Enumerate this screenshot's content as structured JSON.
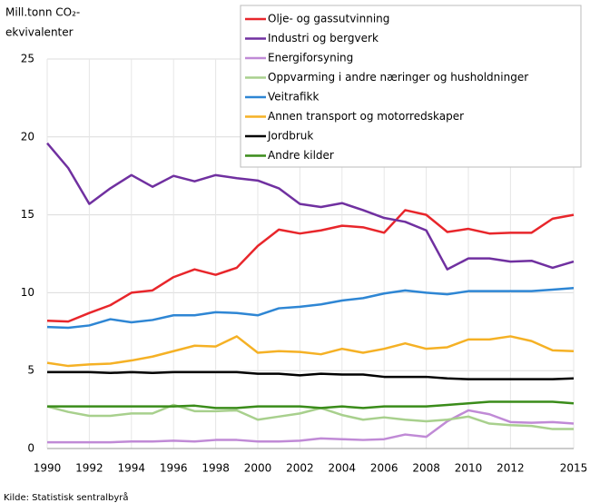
{
  "chart_data": {
    "type": "line",
    "ylabel": [
      "Mill.tonn CO₂-",
      "ekvivalenter"
    ],
    "source": "Kilde: Statistisk sentralbyrå",
    "x": [
      1990,
      1991,
      1992,
      1993,
      1994,
      1995,
      1996,
      1997,
      1998,
      1999,
      2000,
      2001,
      2002,
      2003,
      2004,
      2005,
      2006,
      2007,
      2008,
      2009,
      2010,
      2011,
      2012,
      2013,
      2014,
      2015
    ],
    "xlim": [
      1990,
      2015
    ],
    "xticks": [
      1990,
      1992,
      1994,
      1996,
      1998,
      2000,
      2002,
      2004,
      2006,
      2008,
      2010,
      2012,
      2015
    ],
    "ylim": [
      0,
      25
    ],
    "yticks": [
      0,
      5,
      10,
      15,
      20,
      25
    ],
    "grid": true,
    "legend": "top-right",
    "series": [
      {
        "name": "Olje- og gassutvinning",
        "color": "#e8262b",
        "values": [
          8.2,
          8.15,
          8.7,
          9.2,
          10.0,
          10.15,
          11.0,
          11.5,
          11.15,
          11.6,
          13.0,
          14.05,
          13.8,
          14.0,
          14.3,
          14.2,
          13.85,
          15.3,
          15.0,
          13.9,
          14.1,
          13.8,
          13.85,
          13.85,
          14.75,
          15.0
        ]
      },
      {
        "name": "Industri og bergverk",
        "color": "#7030a0",
        "values": [
          19.6,
          18.0,
          15.7,
          16.7,
          17.55,
          16.8,
          17.5,
          17.15,
          17.55,
          17.35,
          17.2,
          16.7,
          15.7,
          15.5,
          15.75,
          15.3,
          14.8,
          14.55,
          14.0,
          11.5,
          12.2,
          12.2,
          12.0,
          12.05,
          11.6,
          12.0
        ]
      },
      {
        "name": "Energiforsyning",
        "color": "#c08ad6",
        "values": [
          0.4,
          0.4,
          0.4,
          0.4,
          0.45,
          0.45,
          0.5,
          0.45,
          0.55,
          0.55,
          0.45,
          0.45,
          0.5,
          0.65,
          0.6,
          0.55,
          0.6,
          0.9,
          0.75,
          1.75,
          2.45,
          2.2,
          1.7,
          1.65,
          1.7,
          1.6
        ]
      },
      {
        "name": "Oppvarming i andre næringer og husholdninger",
        "color": "#a8d08d",
        "values": [
          2.7,
          2.35,
          2.1,
          2.1,
          2.25,
          2.25,
          2.8,
          2.4,
          2.4,
          2.45,
          1.85,
          2.05,
          2.25,
          2.6,
          2.15,
          1.85,
          2.0,
          1.85,
          1.75,
          1.85,
          2.05,
          1.6,
          1.5,
          1.45,
          1.25,
          1.25
        ]
      },
      {
        "name": "Veitrafikk",
        "color": "#2e86d4",
        "values": [
          7.8,
          7.75,
          7.9,
          8.3,
          8.1,
          8.25,
          8.55,
          8.55,
          8.75,
          8.7,
          8.55,
          9.0,
          9.1,
          9.25,
          9.5,
          9.65,
          9.95,
          10.15,
          10.0,
          9.9,
          10.1,
          10.1,
          10.1,
          10.1,
          10.2,
          10.3
        ]
      },
      {
        "name": "Annen transport og motorredskaper",
        "color": "#f5b125",
        "values": [
          5.5,
          5.3,
          5.4,
          5.45,
          5.65,
          5.9,
          6.25,
          6.6,
          6.55,
          7.2,
          6.15,
          6.25,
          6.2,
          6.05,
          6.4,
          6.15,
          6.4,
          6.75,
          6.4,
          6.5,
          7.0,
          7.0,
          7.2,
          6.9,
          6.3,
          6.25
        ]
      },
      {
        "name": "Jordbruk",
        "color": "#000000",
        "values": [
          4.9,
          4.9,
          4.9,
          4.85,
          4.9,
          4.85,
          4.9,
          4.9,
          4.9,
          4.9,
          4.8,
          4.8,
          4.7,
          4.8,
          4.75,
          4.75,
          4.6,
          4.6,
          4.6,
          4.5,
          4.45,
          4.45,
          4.45,
          4.45,
          4.45,
          4.5
        ]
      },
      {
        "name": "Andre kilder",
        "color": "#3a8c1a",
        "values": [
          2.7,
          2.7,
          2.7,
          2.7,
          2.7,
          2.7,
          2.7,
          2.75,
          2.6,
          2.6,
          2.7,
          2.7,
          2.7,
          2.6,
          2.7,
          2.6,
          2.7,
          2.7,
          2.7,
          2.8,
          2.9,
          3.0,
          3.0,
          3.0,
          3.0,
          2.9
        ]
      }
    ]
  }
}
